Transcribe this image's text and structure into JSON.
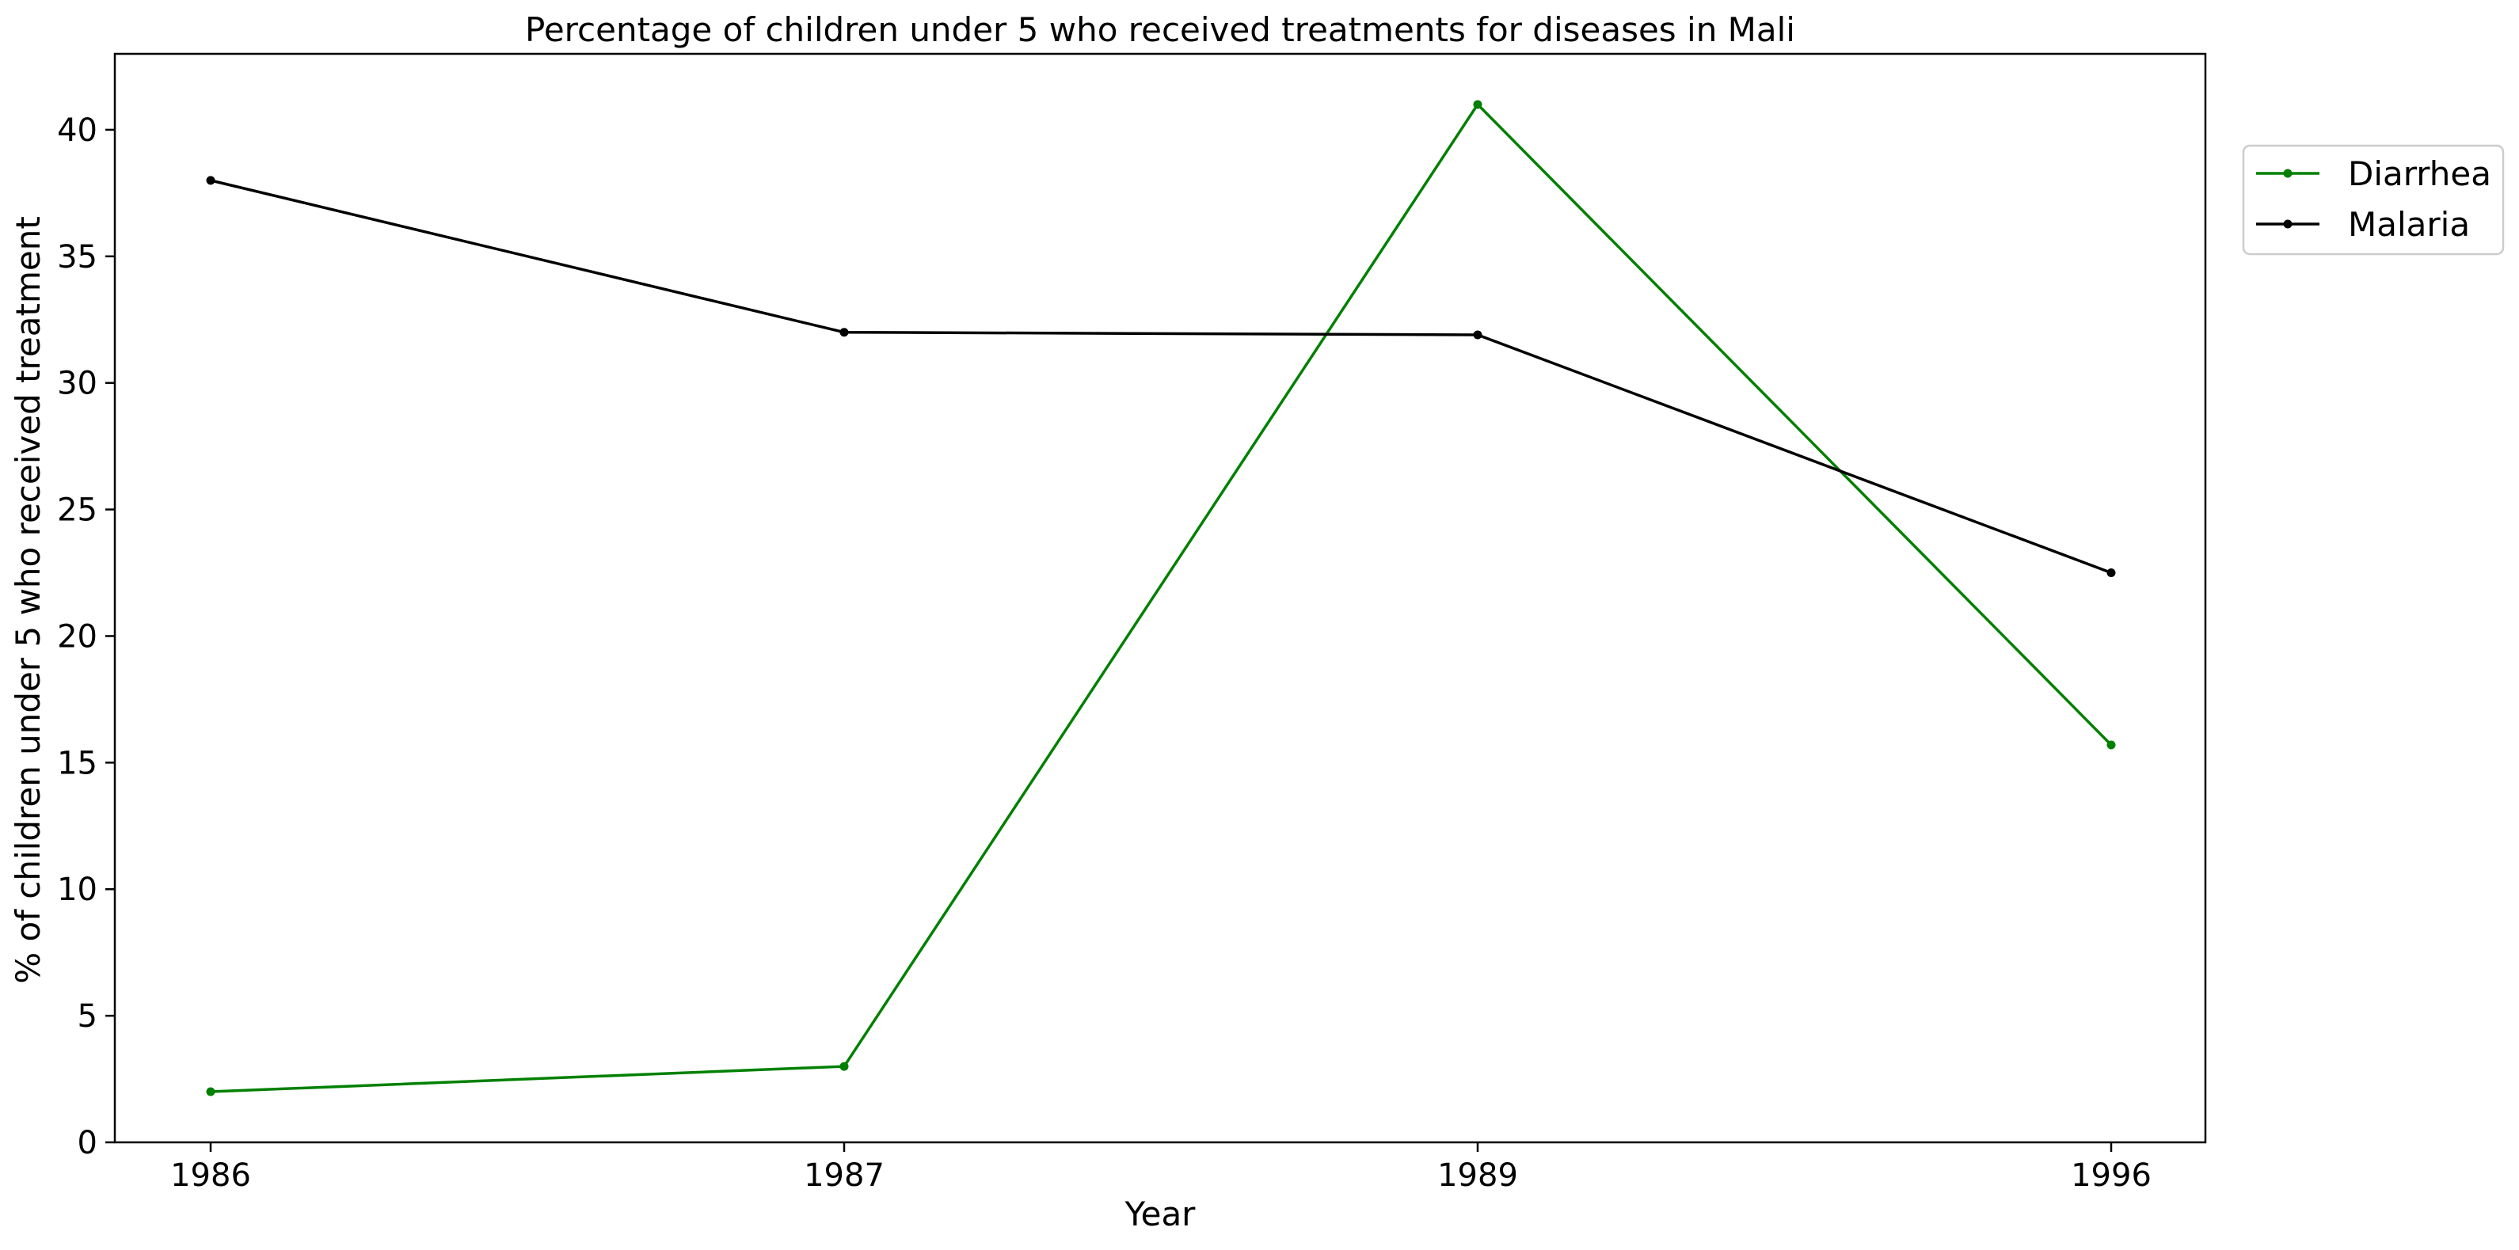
{
  "chart_data": {
    "type": "line",
    "title": "Percentage of children under 5 who received treatments for diseases in Mali",
    "xlabel": "Year",
    "ylabel": "% of children under 5 who received treatment",
    "categories": [
      "1986",
      "1987",
      "1989",
      "1996"
    ],
    "yticks": [
      "0",
      "5",
      "10",
      "15",
      "20",
      "25",
      "30",
      "35",
      "40"
    ],
    "ylim": [
      0,
      43
    ],
    "grid": false,
    "legend_position": "top-right, outside plot",
    "series": [
      {
        "name": "Diarrhea",
        "color": "#008000",
        "values": [
          2.0,
          3.0,
          41.0,
          15.7
        ]
      },
      {
        "name": "Malaria",
        "color": "#000000",
        "values": [
          38.0,
          32.0,
          31.9,
          22.5
        ]
      }
    ]
  }
}
